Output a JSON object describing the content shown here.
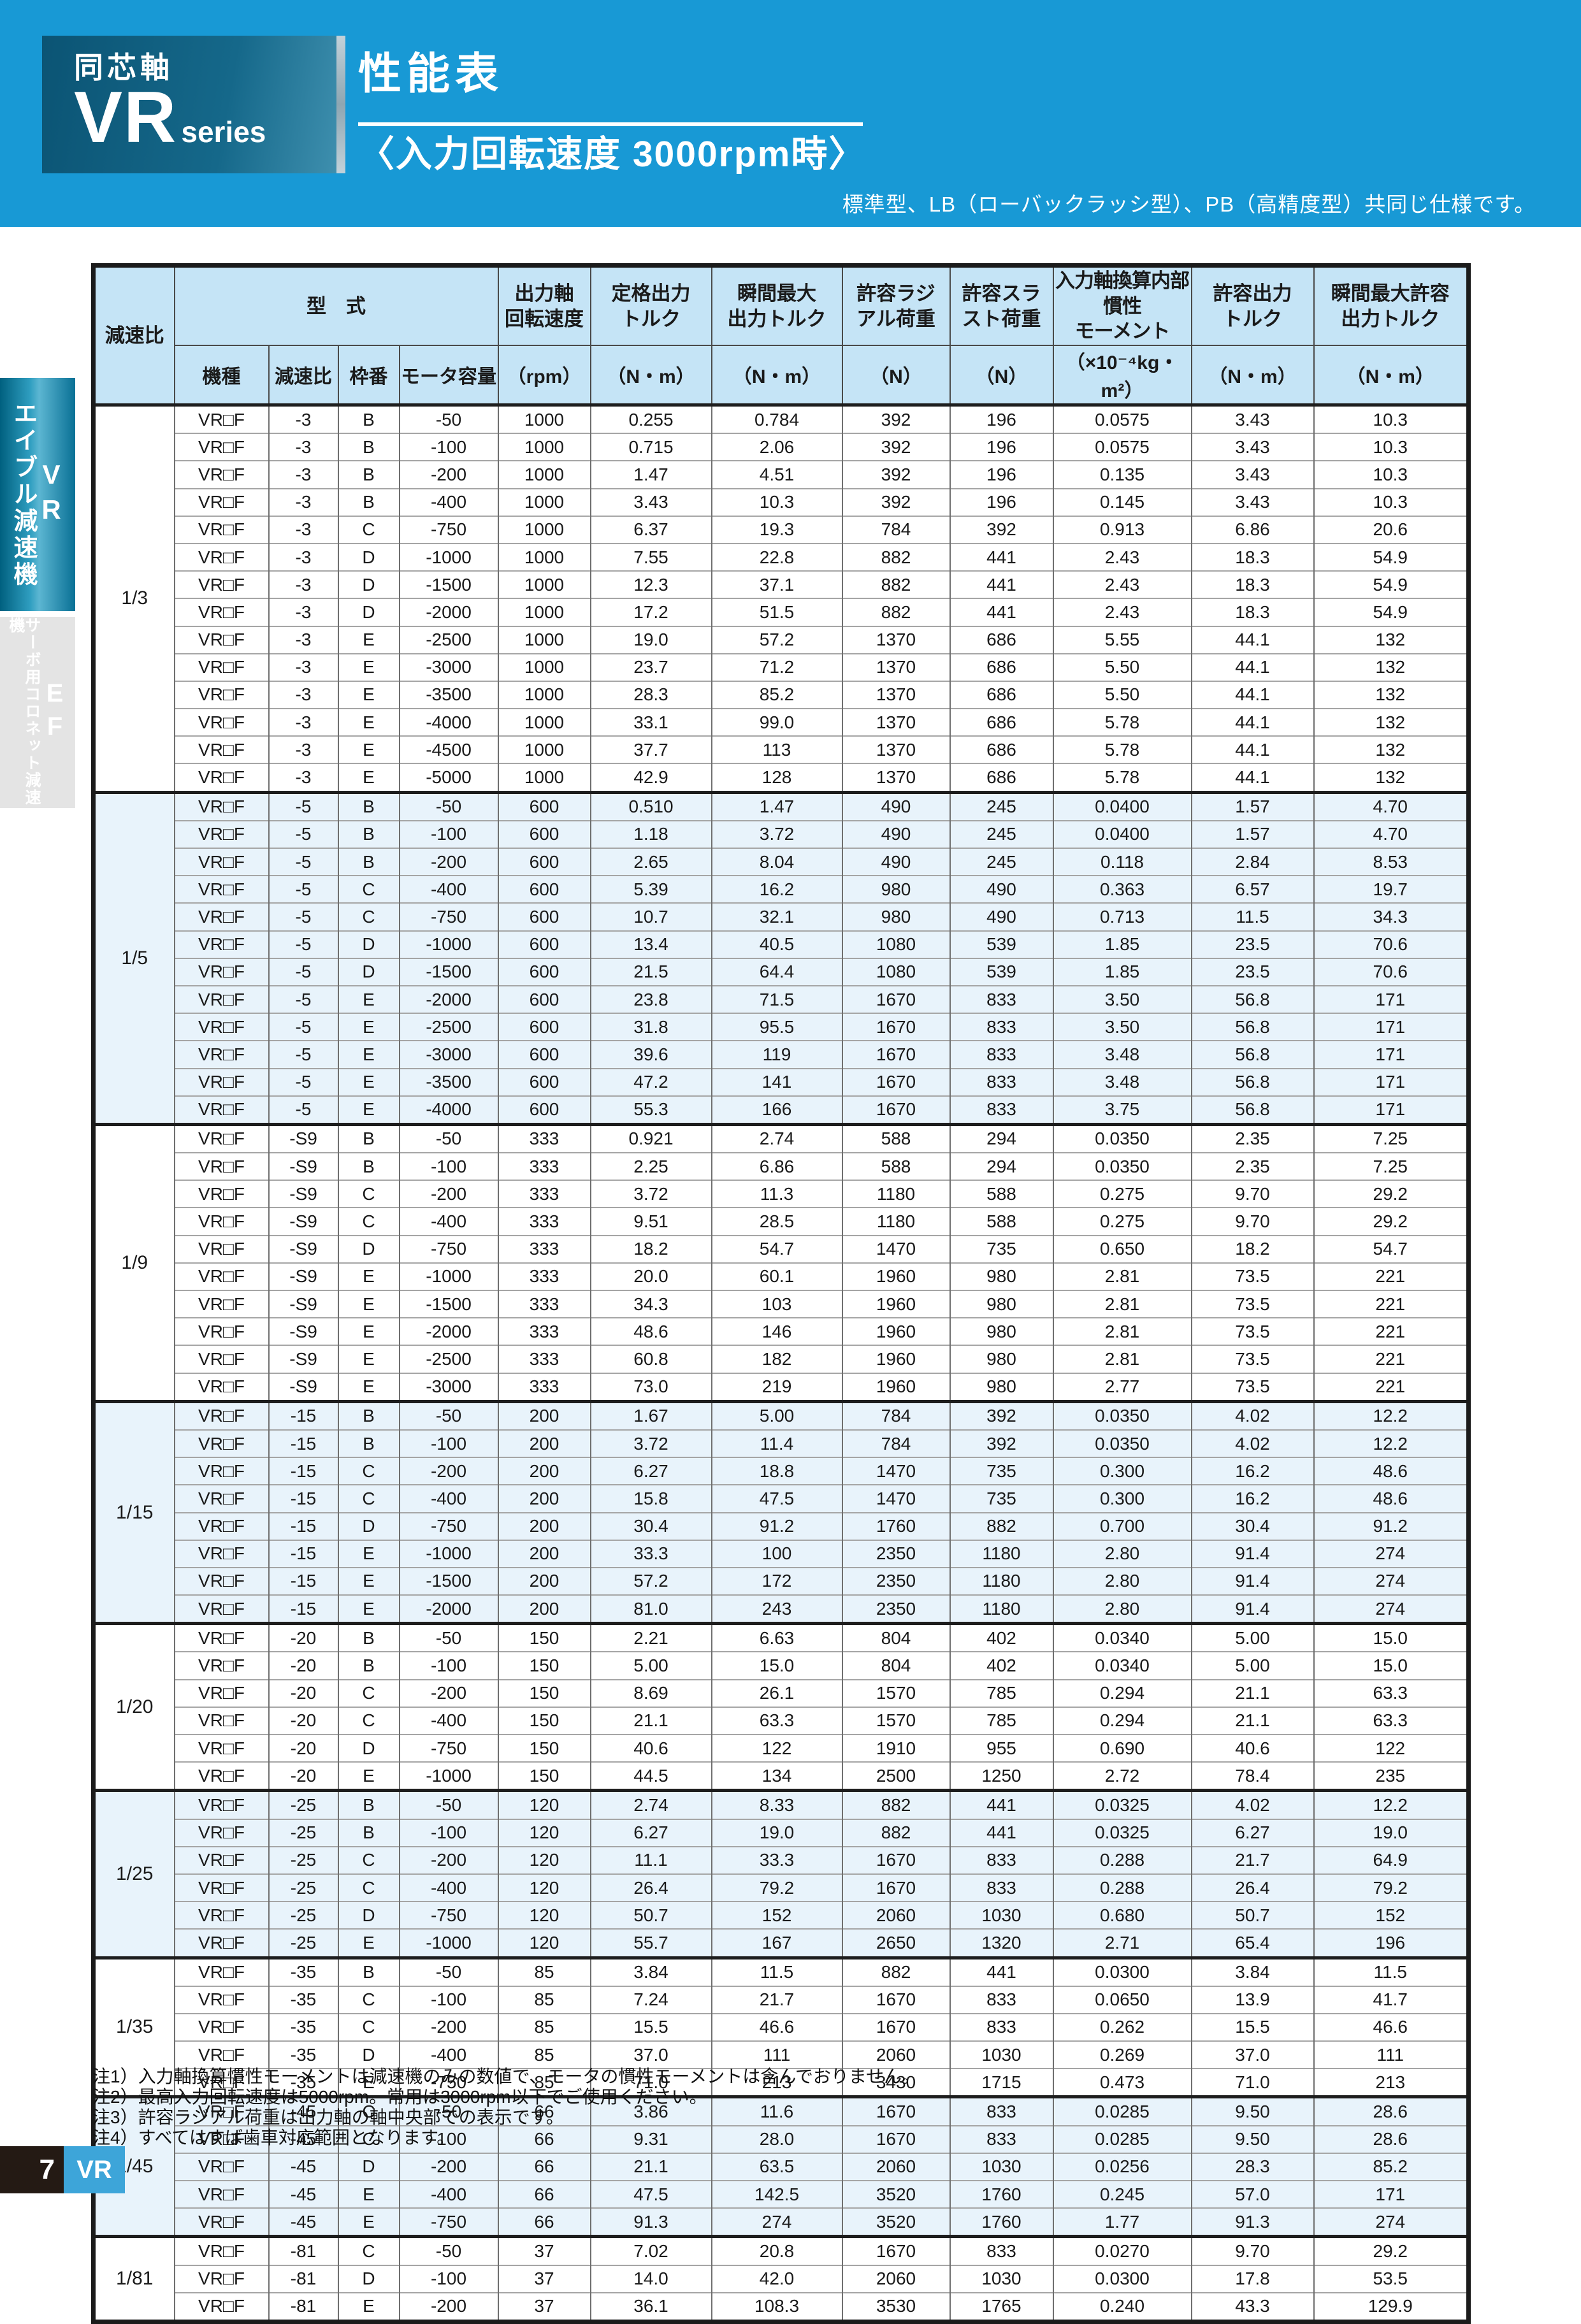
{
  "page": {
    "brand": {
      "category": "同芯軸",
      "series_bold": "VR",
      "series_suffix": "series"
    },
    "title": "性能表",
    "subtitle": "〈入力回転速度 3000rpm時〉",
    "band_note": "標準型、LB（ローバックラッシ型）、PB（高精度型）共同じ仕様です。"
  },
  "sidebar": {
    "tab1": {
      "label": "エイブル減速機",
      "code": "VR"
    },
    "tab2": {
      "label": "サーボ用コロネット減速機",
      "code": "EF"
    }
  },
  "table": {
    "header": {
      "ratio": "減速比",
      "model_group": "型　式",
      "machine": "機種",
      "gear": "減速比",
      "frame": "枠番",
      "motor": "モータ容量",
      "rpm_t": "出力軸\n回転速度",
      "rpm_u": "（rpm）",
      "rated_t": "定格出力\nトルク",
      "rated_u": "（N・m）",
      "inst_t": "瞬間最大\n出力トルク",
      "inst_u": "（N・m）",
      "radial_t": "許容ラジ\nアル荷重",
      "radial_u": "（N）",
      "thrust_t": "許容スラ\nスト荷重",
      "thrust_u": "（N）",
      "inertia_t": "入力軸換算内部慣性\nモーメント",
      "inertia_u": "（×10⁻⁴kg・m²）",
      "allow_t": "許容出力\nトルク",
      "allow_u": "（N・m）",
      "inst_allow_t": "瞬間最大許容\n出力トルク",
      "inst_allow_u": "（N・m）"
    },
    "groups": [
      {
        "ratio": "1/3",
        "shaded": false,
        "rows": [
          [
            "VR□F",
            "-3",
            "B",
            "-50",
            "1000",
            "0.255",
            "0.784",
            "392",
            "196",
            "0.0575",
            "3.43",
            "10.3"
          ],
          [
            "VR□F",
            "-3",
            "B",
            "-100",
            "1000",
            "0.715",
            "2.06",
            "392",
            "196",
            "0.0575",
            "3.43",
            "10.3"
          ],
          [
            "VR□F",
            "-3",
            "B",
            "-200",
            "1000",
            "1.47",
            "4.51",
            "392",
            "196",
            "0.135",
            "3.43",
            "10.3"
          ],
          [
            "VR□F",
            "-3",
            "B",
            "-400",
            "1000",
            "3.43",
            "10.3",
            "392",
            "196",
            "0.145",
            "3.43",
            "10.3"
          ],
          [
            "VR□F",
            "-3",
            "C",
            "-750",
            "1000",
            "6.37",
            "19.3",
            "784",
            "392",
            "0.913",
            "6.86",
            "20.6"
          ],
          [
            "VR□F",
            "-3",
            "D",
            "-1000",
            "1000",
            "7.55",
            "22.8",
            "882",
            "441",
            "2.43",
            "18.3",
            "54.9"
          ],
          [
            "VR□F",
            "-3",
            "D",
            "-1500",
            "1000",
            "12.3",
            "37.1",
            "882",
            "441",
            "2.43",
            "18.3",
            "54.9"
          ],
          [
            "VR□F",
            "-3",
            "D",
            "-2000",
            "1000",
            "17.2",
            "51.5",
            "882",
            "441",
            "2.43",
            "18.3",
            "54.9"
          ],
          [
            "VR□F",
            "-3",
            "E",
            "-2500",
            "1000",
            "19.0",
            "57.2",
            "1370",
            "686",
            "5.55",
            "44.1",
            "132"
          ],
          [
            "VR□F",
            "-3",
            "E",
            "-3000",
            "1000",
            "23.7",
            "71.2",
            "1370",
            "686",
            "5.50",
            "44.1",
            "132"
          ],
          [
            "VR□F",
            "-3",
            "E",
            "-3500",
            "1000",
            "28.3",
            "85.2",
            "1370",
            "686",
            "5.50",
            "44.1",
            "132"
          ],
          [
            "VR□F",
            "-3",
            "E",
            "-4000",
            "1000",
            "33.1",
            "99.0",
            "1370",
            "686",
            "5.78",
            "44.1",
            "132"
          ],
          [
            "VR□F",
            "-3",
            "E",
            "-4500",
            "1000",
            "37.7",
            "113",
            "1370",
            "686",
            "5.78",
            "44.1",
            "132"
          ],
          [
            "VR□F",
            "-3",
            "E",
            "-5000",
            "1000",
            "42.9",
            "128",
            "1370",
            "686",
            "5.78",
            "44.1",
            "132"
          ]
        ]
      },
      {
        "ratio": "1/5",
        "shaded": true,
        "rows": [
          [
            "VR□F",
            "-5",
            "B",
            "-50",
            "600",
            "0.510",
            "1.47",
            "490",
            "245",
            "0.0400",
            "1.57",
            "4.70"
          ],
          [
            "VR□F",
            "-5",
            "B",
            "-100",
            "600",
            "1.18",
            "3.72",
            "490",
            "245",
            "0.0400",
            "1.57",
            "4.70"
          ],
          [
            "VR□F",
            "-5",
            "B",
            "-200",
            "600",
            "2.65",
            "8.04",
            "490",
            "245",
            "0.118",
            "2.84",
            "8.53"
          ],
          [
            "VR□F",
            "-5",
            "C",
            "-400",
            "600",
            "5.39",
            "16.2",
            "980",
            "490",
            "0.363",
            "6.57",
            "19.7"
          ],
          [
            "VR□F",
            "-5",
            "C",
            "-750",
            "600",
            "10.7",
            "32.1",
            "980",
            "490",
            "0.713",
            "11.5",
            "34.3"
          ],
          [
            "VR□F",
            "-5",
            "D",
            "-1000",
            "600",
            "13.4",
            "40.5",
            "1080",
            "539",
            "1.85",
            "23.5",
            "70.6"
          ],
          [
            "VR□F",
            "-5",
            "D",
            "-1500",
            "600",
            "21.5",
            "64.4",
            "1080",
            "539",
            "1.85",
            "23.5",
            "70.6"
          ],
          [
            "VR□F",
            "-5",
            "E",
            "-2000",
            "600",
            "23.8",
            "71.5",
            "1670",
            "833",
            "3.50",
            "56.8",
            "171"
          ],
          [
            "VR□F",
            "-5",
            "E",
            "-2500",
            "600",
            "31.8",
            "95.5",
            "1670",
            "833",
            "3.50",
            "56.8",
            "171"
          ],
          [
            "VR□F",
            "-5",
            "E",
            "-3000",
            "600",
            "39.6",
            "119",
            "1670",
            "833",
            "3.48",
            "56.8",
            "171"
          ],
          [
            "VR□F",
            "-5",
            "E",
            "-3500",
            "600",
            "47.2",
            "141",
            "1670",
            "833",
            "3.48",
            "56.8",
            "171"
          ],
          [
            "VR□F",
            "-5",
            "E",
            "-4000",
            "600",
            "55.3",
            "166",
            "1670",
            "833",
            "3.75",
            "56.8",
            "171"
          ]
        ]
      },
      {
        "ratio": "1/9",
        "shaded": false,
        "rows": [
          [
            "VR□F",
            "-S9",
            "B",
            "-50",
            "333",
            "0.921",
            "2.74",
            "588",
            "294",
            "0.0350",
            "2.35",
            "7.25"
          ],
          [
            "VR□F",
            "-S9",
            "B",
            "-100",
            "333",
            "2.25",
            "6.86",
            "588",
            "294",
            "0.0350",
            "2.35",
            "7.25"
          ],
          [
            "VR□F",
            "-S9",
            "C",
            "-200",
            "333",
            "3.72",
            "11.3",
            "1180",
            "588",
            "0.275",
            "9.70",
            "29.2"
          ],
          [
            "VR□F",
            "-S9",
            "C",
            "-400",
            "333",
            "9.51",
            "28.5",
            "1180",
            "588",
            "0.275",
            "9.70",
            "29.2"
          ],
          [
            "VR□F",
            "-S9",
            "D",
            "-750",
            "333",
            "18.2",
            "54.7",
            "1470",
            "735",
            "0.650",
            "18.2",
            "54.7"
          ],
          [
            "VR□F",
            "-S9",
            "E",
            "-1000",
            "333",
            "20.0",
            "60.1",
            "1960",
            "980",
            "2.81",
            "73.5",
            "221"
          ],
          [
            "VR□F",
            "-S9",
            "E",
            "-1500",
            "333",
            "34.3",
            "103",
            "1960",
            "980",
            "2.81",
            "73.5",
            "221"
          ],
          [
            "VR□F",
            "-S9",
            "E",
            "-2000",
            "333",
            "48.6",
            "146",
            "1960",
            "980",
            "2.81",
            "73.5",
            "221"
          ],
          [
            "VR□F",
            "-S9",
            "E",
            "-2500",
            "333",
            "60.8",
            "182",
            "1960",
            "980",
            "2.81",
            "73.5",
            "221"
          ],
          [
            "VR□F",
            "-S9",
            "E",
            "-3000",
            "333",
            "73.0",
            "219",
            "1960",
            "980",
            "2.77",
            "73.5",
            "221"
          ]
        ]
      },
      {
        "ratio": "1/15",
        "shaded": true,
        "rows": [
          [
            "VR□F",
            "-15",
            "B",
            "-50",
            "200",
            "1.67",
            "5.00",
            "784",
            "392",
            "0.0350",
            "4.02",
            "12.2"
          ],
          [
            "VR□F",
            "-15",
            "B",
            "-100",
            "200",
            "3.72",
            "11.4",
            "784",
            "392",
            "0.0350",
            "4.02",
            "12.2"
          ],
          [
            "VR□F",
            "-15",
            "C",
            "-200",
            "200",
            "6.27",
            "18.8",
            "1470",
            "735",
            "0.300",
            "16.2",
            "48.6"
          ],
          [
            "VR□F",
            "-15",
            "C",
            "-400",
            "200",
            "15.8",
            "47.5",
            "1470",
            "735",
            "0.300",
            "16.2",
            "48.6"
          ],
          [
            "VR□F",
            "-15",
            "D",
            "-750",
            "200",
            "30.4",
            "91.2",
            "1760",
            "882",
            "0.700",
            "30.4",
            "91.2"
          ],
          [
            "VR□F",
            "-15",
            "E",
            "-1000",
            "200",
            "33.3",
            "100",
            "2350",
            "1180",
            "2.80",
            "91.4",
            "274"
          ],
          [
            "VR□F",
            "-15",
            "E",
            "-1500",
            "200",
            "57.2",
            "172",
            "2350",
            "1180",
            "2.80",
            "91.4",
            "274"
          ],
          [
            "VR□F",
            "-15",
            "E",
            "-2000",
            "200",
            "81.0",
            "243",
            "2350",
            "1180",
            "2.80",
            "91.4",
            "274"
          ]
        ]
      },
      {
        "ratio": "1/20",
        "shaded": false,
        "rows": [
          [
            "VR□F",
            "-20",
            "B",
            "-50",
            "150",
            "2.21",
            "6.63",
            "804",
            "402",
            "0.0340",
            "5.00",
            "15.0"
          ],
          [
            "VR□F",
            "-20",
            "B",
            "-100",
            "150",
            "5.00",
            "15.0",
            "804",
            "402",
            "0.0340",
            "5.00",
            "15.0"
          ],
          [
            "VR□F",
            "-20",
            "C",
            "-200",
            "150",
            "8.69",
            "26.1",
            "1570",
            "785",
            "0.294",
            "21.1",
            "63.3"
          ],
          [
            "VR□F",
            "-20",
            "C",
            "-400",
            "150",
            "21.1",
            "63.3",
            "1570",
            "785",
            "0.294",
            "21.1",
            "63.3"
          ],
          [
            "VR□F",
            "-20",
            "D",
            "-750",
            "150",
            "40.6",
            "122",
            "1910",
            "955",
            "0.690",
            "40.6",
            "122"
          ],
          [
            "VR□F",
            "-20",
            "E",
            "-1000",
            "150",
            "44.5",
            "134",
            "2500",
            "1250",
            "2.72",
            "78.4",
            "235"
          ]
        ]
      },
      {
        "ratio": "1/25",
        "shaded": true,
        "rows": [
          [
            "VR□F",
            "-25",
            "B",
            "-50",
            "120",
            "2.74",
            "8.33",
            "882",
            "441",
            "0.0325",
            "4.02",
            "12.2"
          ],
          [
            "VR□F",
            "-25",
            "B",
            "-100",
            "120",
            "6.27",
            "19.0",
            "882",
            "441",
            "0.0325",
            "6.27",
            "19.0"
          ],
          [
            "VR□F",
            "-25",
            "C",
            "-200",
            "120",
            "11.1",
            "33.3",
            "1670",
            "833",
            "0.288",
            "21.7",
            "64.9"
          ],
          [
            "VR□F",
            "-25",
            "C",
            "-400",
            "120",
            "26.4",
            "79.2",
            "1670",
            "833",
            "0.288",
            "26.4",
            "79.2"
          ],
          [
            "VR□F",
            "-25",
            "D",
            "-750",
            "120",
            "50.7",
            "152",
            "2060",
            "1030",
            "0.680",
            "50.7",
            "152"
          ],
          [
            "VR□F",
            "-25",
            "E",
            "-1000",
            "120",
            "55.7",
            "167",
            "2650",
            "1320",
            "2.71",
            "65.4",
            "196"
          ]
        ]
      },
      {
        "ratio": "1/35",
        "shaded": false,
        "rows": [
          [
            "VR□F",
            "-35",
            "B",
            "-50",
            "85",
            "3.84",
            "11.5",
            "882",
            "441",
            "0.0300",
            "3.84",
            "11.5"
          ],
          [
            "VR□F",
            "-35",
            "C",
            "-100",
            "85",
            "7.24",
            "21.7",
            "1670",
            "833",
            "0.0650",
            "13.9",
            "41.7"
          ],
          [
            "VR□F",
            "-35",
            "C",
            "-200",
            "85",
            "15.5",
            "46.6",
            "1670",
            "833",
            "0.262",
            "15.5",
            "46.6"
          ],
          [
            "VR□F",
            "-35",
            "D",
            "-400",
            "85",
            "37.0",
            "111",
            "2060",
            "1030",
            "0.269",
            "37.0",
            "111"
          ],
          [
            "VR□F",
            "-35",
            "E",
            "-750",
            "85",
            "71.0",
            "213",
            "3430",
            "1715",
            "0.473",
            "71.0",
            "213"
          ]
        ]
      },
      {
        "ratio": "1/45",
        "shaded": true,
        "rows": [
          [
            "VR□F",
            "-45",
            "C",
            "-50",
            "66",
            "3.86",
            "11.6",
            "1670",
            "833",
            "0.0285",
            "9.50",
            "28.6"
          ],
          [
            "VR□F",
            "-45",
            "C",
            "-100",
            "66",
            "9.31",
            "28.0",
            "1670",
            "833",
            "0.0285",
            "9.50",
            "28.6"
          ],
          [
            "VR□F",
            "-45",
            "D",
            "-200",
            "66",
            "21.1",
            "63.5",
            "2060",
            "1030",
            "0.0256",
            "28.3",
            "85.2"
          ],
          [
            "VR□F",
            "-45",
            "E",
            "-400",
            "66",
            "47.5",
            "142.5",
            "3520",
            "1760",
            "0.245",
            "57.0",
            "171"
          ],
          [
            "VR□F",
            "-45",
            "E",
            "-750",
            "66",
            "91.3",
            "274",
            "3520",
            "1760",
            "1.77",
            "91.3",
            "274"
          ]
        ]
      },
      {
        "ratio": "1/81",
        "shaded": false,
        "rows": [
          [
            "VR□F",
            "-81",
            "C",
            "-50",
            "37",
            "7.02",
            "20.8",
            "1670",
            "833",
            "0.0270",
            "9.70",
            "29.2"
          ],
          [
            "VR□F",
            "-81",
            "D",
            "-100",
            "37",
            "14.0",
            "42.0",
            "2060",
            "1030",
            "0.0300",
            "17.8",
            "53.5"
          ],
          [
            "VR□F",
            "-81",
            "E",
            "-200",
            "37",
            "36.1",
            "108.3",
            "3530",
            "1765",
            "0.240",
            "43.3",
            "129.9"
          ]
        ]
      }
    ]
  },
  "notes": [
    "注1）入力軸換算慣性モーメントは減速機のみの数値で、モータの慣性モーメントは含んでおりません。",
    "注2）最高入力回転速度は5000rpm。常用は3000rpm以下でご使用ください。",
    "注3）許容ラジアル荷重は出力軸の軸中央部での表示です。",
    "注4）すべてはすば歯車対応範囲となります。"
  ],
  "footer": {
    "page_number": "7",
    "tab": "VR"
  }
}
